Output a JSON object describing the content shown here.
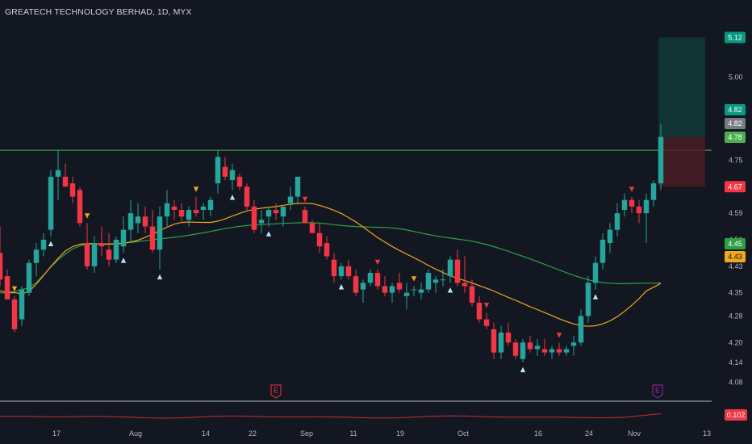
{
  "header": {
    "title": "GREATECH TECHNOLOGY BERHAD, 1D, MYX"
  },
  "colors": {
    "background": "#131722",
    "up": "#26a69a",
    "down": "#f23645",
    "ma_fast": "#f0a81c",
    "ma_slow": "#089981",
    "ma_slow_line": "#2ea043",
    "resistance": "#4caf50",
    "target_zone": "#0f3a36",
    "stop_zone": "#4a1c25",
    "oscillator": "#c2303a"
  },
  "events": [
    {
      "label": "E",
      "date": "2023-09-01"
    },
    {
      "label": "E",
      "date": "2023-11-03"
    }
  ],
  "chart_data": {
    "type": "candlestick",
    "symbol": "GREATECH TECHNOLOGY BERHAD",
    "interval": "1D",
    "exchange": "MYX",
    "ylim": [
      4.04,
      5.16
    ],
    "y_ticks": [
      "5.00",
      "4.82",
      "4.75",
      "4.67",
      "4.59",
      "4.51",
      "4.43",
      "4.35",
      "4.28",
      "4.20",
      "4.14",
      "4.08"
    ],
    "x_ticks": [
      "17",
      "Aug",
      "14",
      "22",
      "Sep",
      "11",
      "19",
      "Oct",
      "16",
      "24",
      "Nov",
      "13"
    ],
    "price_labels": [
      {
        "value": 5.12,
        "text": "5.12",
        "color": "#089981",
        "text_color": "#ffffff"
      },
      {
        "value": 4.82,
        "text": "4.82",
        "color": "#089981",
        "text_color": "#ffffff"
      },
      {
        "value": 4.82,
        "text": "4.82",
        "color": "#787b86",
        "text_color": "#ffffff"
      },
      {
        "value": 4.78,
        "text": "4.78",
        "color": "#4caf50",
        "text_color": "#ffffff"
      },
      {
        "value": 4.67,
        "text": "4.67",
        "color": "#f23645",
        "text_color": "#ffffff"
      },
      {
        "value": 4.45,
        "text": "4.45",
        "color": "#2ea043",
        "text_color": "#ffffff"
      },
      {
        "value": 4.43,
        "text": "4.43",
        "color": "#f0a81c",
        "text_color": "#131722"
      }
    ],
    "resistance_level": 4.78,
    "position": {
      "entry": 4.82,
      "target": 5.12,
      "stop": 4.67
    },
    "candles": [
      [
        4.47,
        4.55,
        4.37,
        4.39
      ],
      [
        4.4,
        4.42,
        4.33,
        4.33
      ],
      [
        4.33,
        4.34,
        4.23,
        4.24
      ],
      [
        4.27,
        4.37,
        4.25,
        4.36
      ],
      [
        4.35,
        4.45,
        4.34,
        4.44
      ],
      [
        4.44,
        4.5,
        4.4,
        4.48
      ],
      [
        4.48,
        4.53,
        4.46,
        4.51
      ],
      [
        4.54,
        4.72,
        4.52,
        4.7
      ],
      [
        4.7,
        4.78,
        4.63,
        4.72
      ],
      [
        4.7,
        4.74,
        4.67,
        4.67
      ],
      [
        4.68,
        4.7,
        4.62,
        4.64
      ],
      [
        4.66,
        4.67,
        4.55,
        4.56
      ],
      [
        4.5,
        4.56,
        4.42,
        4.43
      ],
      [
        4.43,
        4.52,
        4.41,
        4.5
      ],
      [
        4.5,
        4.55,
        4.46,
        4.49
      ],
      [
        4.48,
        4.53,
        4.43,
        4.45
      ],
      [
        4.45,
        4.52,
        4.44,
        4.51
      ],
      [
        4.49,
        4.58,
        4.47,
        4.54
      ],
      [
        4.54,
        4.63,
        4.5,
        4.59
      ],
      [
        4.56,
        4.62,
        4.53,
        4.58
      ],
      [
        4.58,
        4.61,
        4.53,
        4.55
      ],
      [
        4.55,
        4.6,
        4.47,
        4.48
      ],
      [
        4.48,
        4.61,
        4.42,
        4.58
      ],
      [
        4.58,
        4.66,
        4.55,
        4.62
      ],
      [
        4.61,
        4.63,
        4.57,
        4.6
      ],
      [
        4.6,
        4.62,
        4.56,
        4.58
      ],
      [
        4.57,
        4.61,
        4.55,
        4.6
      ],
      [
        4.6,
        4.64,
        4.58,
        4.59
      ],
      [
        4.6,
        4.62,
        4.57,
        4.61
      ],
      [
        4.6,
        4.64,
        4.58,
        4.63
      ],
      [
        4.68,
        4.78,
        4.65,
        4.76
      ],
      [
        4.73,
        4.76,
        4.69,
        4.7
      ],
      [
        4.69,
        4.74,
        4.66,
        4.72
      ],
      [
        4.7,
        4.71,
        4.66,
        4.67
      ],
      [
        4.67,
        4.68,
        4.6,
        4.61
      ],
      [
        4.61,
        4.63,
        4.53,
        4.54
      ],
      [
        4.56,
        4.6,
        4.53,
        4.57
      ],
      [
        4.58,
        4.61,
        4.55,
        4.6
      ],
      [
        4.6,
        4.62,
        4.57,
        4.59
      ],
      [
        4.58,
        4.6,
        4.55,
        4.61
      ],
      [
        4.62,
        4.67,
        4.6,
        4.64
      ],
      [
        4.64,
        4.7,
        4.62,
        4.7
      ],
      [
        4.6,
        4.61,
        4.56,
        4.56
      ],
      [
        4.56,
        4.57,
        4.53,
        4.53
      ],
      [
        4.53,
        4.56,
        4.47,
        4.49
      ],
      [
        4.5,
        4.52,
        4.45,
        4.46
      ],
      [
        4.45,
        4.47,
        4.38,
        4.4
      ],
      [
        4.4,
        4.44,
        4.39,
        4.43
      ],
      [
        4.43,
        4.45,
        4.39,
        4.4
      ],
      [
        4.4,
        4.42,
        4.34,
        4.35
      ],
      [
        4.36,
        4.39,
        4.32,
        4.38
      ],
      [
        4.38,
        4.42,
        4.37,
        4.41
      ],
      [
        4.41,
        4.42,
        4.36,
        4.37
      ],
      [
        4.37,
        4.4,
        4.34,
        4.35
      ],
      [
        4.35,
        4.38,
        4.32,
        4.37
      ],
      [
        4.38,
        4.41,
        4.35,
        4.36
      ],
      [
        4.34,
        4.38,
        4.3,
        4.35
      ],
      [
        4.36,
        4.37,
        4.34,
        4.36
      ],
      [
        4.35,
        4.38,
        4.33,
        4.36
      ],
      [
        4.36,
        4.42,
        4.35,
        4.41
      ],
      [
        4.38,
        4.4,
        4.35,
        4.39
      ],
      [
        4.39,
        4.42,
        4.37,
        4.39
      ],
      [
        4.4,
        4.46,
        4.38,
        4.45
      ],
      [
        4.45,
        4.48,
        4.37,
        4.38
      ],
      [
        4.38,
        4.46,
        4.35,
        4.37
      ],
      [
        4.37,
        4.39,
        4.31,
        4.32
      ],
      [
        4.32,
        4.34,
        4.26,
        4.27
      ],
      [
        4.27,
        4.29,
        4.24,
        4.25
      ],
      [
        4.24,
        4.26,
        4.15,
        4.17
      ],
      [
        4.17,
        4.25,
        4.15,
        4.23
      ],
      [
        4.23,
        4.26,
        4.19,
        4.2
      ],
      [
        4.2,
        4.21,
        4.15,
        4.16
      ],
      [
        4.15,
        4.21,
        4.14,
        4.2
      ],
      [
        4.2,
        4.22,
        4.17,
        4.18
      ],
      [
        4.18,
        4.21,
        4.16,
        4.19
      ],
      [
        4.18,
        4.21,
        4.16,
        4.17
      ],
      [
        4.17,
        4.19,
        4.15,
        4.18
      ],
      [
        4.18,
        4.2,
        4.16,
        4.17
      ],
      [
        4.17,
        4.19,
        4.16,
        4.18
      ],
      [
        4.19,
        4.22,
        4.16,
        4.2
      ],
      [
        4.2,
        4.3,
        4.19,
        4.28
      ],
      [
        4.28,
        4.4,
        4.26,
        4.38
      ],
      [
        4.38,
        4.46,
        4.36,
        4.44
      ],
      [
        4.44,
        4.53,
        4.42,
        4.51
      ],
      [
        4.5,
        4.56,
        4.47,
        4.54
      ],
      [
        4.54,
        4.62,
        4.52,
        4.59
      ],
      [
        4.6,
        4.65,
        4.58,
        4.63
      ],
      [
        4.63,
        4.64,
        4.59,
        4.61
      ],
      [
        4.61,
        4.63,
        4.56,
        4.59
      ],
      [
        4.59,
        4.65,
        4.5,
        4.63
      ],
      [
        4.63,
        4.69,
        4.61,
        4.68
      ],
      [
        4.68,
        4.86,
        4.66,
        4.82
      ]
    ]
  }
}
